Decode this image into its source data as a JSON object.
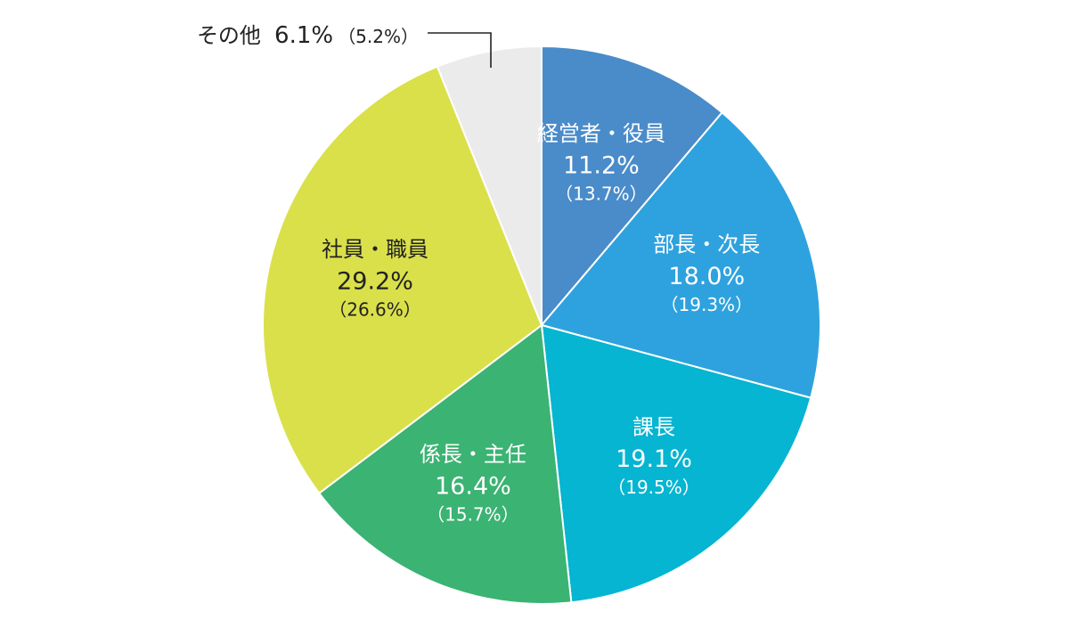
{
  "chart_data": {
    "type": "pie",
    "start_angle_deg": 0,
    "direction": "clockwise",
    "slices": [
      {
        "label": "経営者・役員",
        "value": 11.2,
        "value_text": "11.2%",
        "previous_text": "（13.7%）",
        "color": "#4A8BC9",
        "text_color": "#ffffff"
      },
      {
        "label": "部長・次長",
        "value": 18.0,
        "value_text": "18.0%",
        "previous_text": "（19.3%）",
        "color": "#2EA2DE",
        "text_color": "#ffffff"
      },
      {
        "label": "課長",
        "value": 19.1,
        "value_text": "19.1%",
        "previous_text": "（19.5%）",
        "color": "#05B5D2",
        "text_color": "#ffffff"
      },
      {
        "label": "係長・主任",
        "value": 16.4,
        "value_text": "16.4%",
        "previous_text": "（15.7%）",
        "color": "#3BB373",
        "text_color": "#ffffff"
      },
      {
        "label": "社員・職員",
        "value": 29.2,
        "value_text": "29.2%",
        "previous_text": "（26.6%）",
        "color": "#DAE04A",
        "text_color": "#222222"
      },
      {
        "label": "その他",
        "value": 6.1,
        "value_text": "6.1%",
        "previous_text": "（5.2%）",
        "color": "#EBEBEB",
        "text_color": "#222222",
        "label_outside": true
      }
    ]
  }
}
